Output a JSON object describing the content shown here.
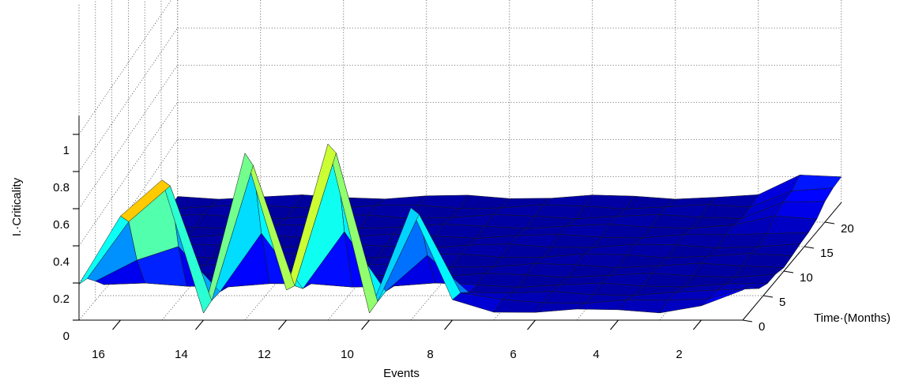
{
  "chart_data": {
    "type": "surface",
    "title": "",
    "xlabel": "Events",
    "ylabel": "Time·(Months)",
    "zlabel": "I.·Criticality",
    "x_ticks": [
      "16",
      "14",
      "12",
      "10",
      "8",
      "6",
      "4",
      "2"
    ],
    "y_ticks": [
      "0",
      "5",
      "10",
      "15",
      "20"
    ],
    "z_ticks": [
      "0",
      "0.2",
      "0.4",
      "0.6",
      "0.8",
      "1"
    ],
    "xlim": [
      1,
      17
    ],
    "ylim": [
      0,
      24
    ],
    "zlim": [
      0,
      1
    ],
    "grid": true,
    "colormap": "jet",
    "approximate_peak_values_at_time_0": [
      {
        "event": 17,
        "value": 0.2
      },
      {
        "event": 16,
        "value": 0.55
      },
      {
        "event": 15,
        "value": 0.75
      },
      {
        "event": 14,
        "value": 0.05
      },
      {
        "event": 13,
        "value": 0.9
      },
      {
        "event": 12,
        "value": 0.15
      },
      {
        "event": 11,
        "value": 0.95
      },
      {
        "event": 10,
        "value": 0.05
      },
      {
        "event": 9,
        "value": 0.6
      },
      {
        "event": 8,
        "value": 0.1
      },
      {
        "event": 7,
        "value": 0.05
      },
      {
        "event": 6,
        "value": 0.05
      },
      {
        "event": 5,
        "value": 0.05
      },
      {
        "event": 4,
        "value": 0.05
      },
      {
        "event": 3,
        "value": 0.05
      },
      {
        "event": 2,
        "value": 0.08
      },
      {
        "event": 1,
        "value": 0.15
      }
    ]
  }
}
